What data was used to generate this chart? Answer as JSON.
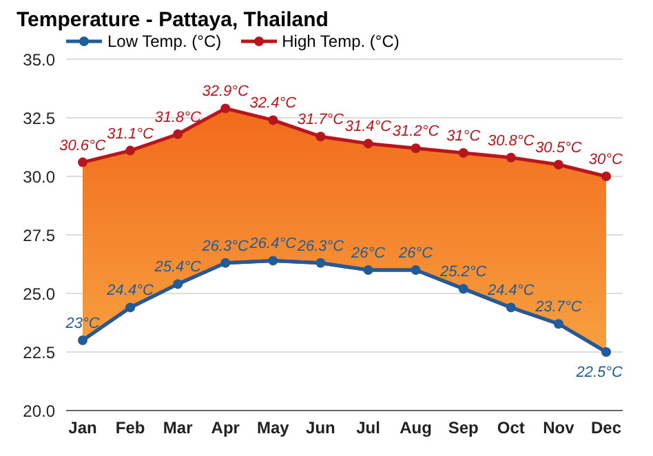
{
  "chart_data": {
    "type": "line",
    "title": "Temperature - Pattaya, Thailand",
    "categories": [
      "Jan",
      "Feb",
      "Mar",
      "Apr",
      "May",
      "Jun",
      "Jul",
      "Aug",
      "Sep",
      "Oct",
      "Nov",
      "Dec"
    ],
    "series": [
      {
        "name": "Low Temp. (°C)",
        "color": "#1f5c99",
        "values": [
          23,
          24.4,
          25.4,
          26.3,
          26.4,
          26.3,
          26,
          26,
          25.2,
          24.4,
          23.7,
          22.5
        ],
        "value_labels": [
          "23°C",
          "24.4°C",
          "25.4°C",
          "26.3°C",
          "26.4°C",
          "26.3°C",
          "26°C",
          "26°C",
          "25.2°C",
          "24.4°C",
          "23.7°C",
          "22.5°C"
        ]
      },
      {
        "name": "High Temp. (°C)",
        "type": "area",
        "color": "#b8151d",
        "values": [
          30.6,
          31.1,
          31.8,
          32.9,
          32.4,
          31.7,
          31.4,
          31.2,
          31,
          30.8,
          30.5,
          30
        ],
        "value_labels": [
          "30.6°C",
          "31.1°C",
          "31.8°C",
          "32.9°C",
          "32.4°C",
          "31.7°C",
          "31.4°C",
          "31.2°C",
          "31°C",
          "30.8°C",
          "30.5°C",
          "30°C"
        ]
      }
    ],
    "ylim": [
      20,
      35
    ],
    "yticks": [
      {
        "value": 20,
        "label": "20.0"
      },
      {
        "value": 22.5,
        "label": "22.5"
      },
      {
        "value": 25,
        "label": "25.0"
      },
      {
        "value": 27.5,
        "label": "27.5"
      },
      {
        "value": 30,
        "label": "30.0"
      },
      {
        "value": 32.5,
        "label": "32.5"
      },
      {
        "value": 35,
        "label": "35.0"
      }
    ],
    "grid": "y",
    "legend": "top left",
    "marker": "circle"
  }
}
